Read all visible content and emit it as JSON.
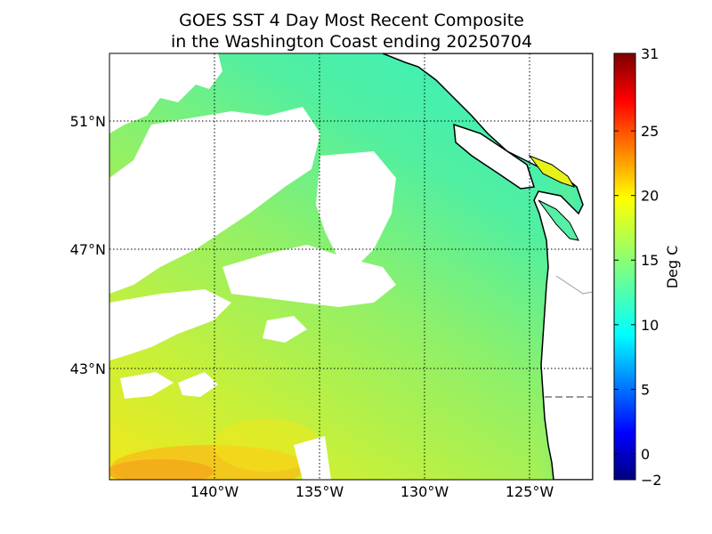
{
  "title": {
    "line1": "GOES SST 4 Day Most Recent Composite",
    "line2": "in the Washington Coast ending 20250704"
  },
  "map": {
    "lon_range": [
      -145.5,
      -122.8
    ],
    "lat_range": [
      40.0,
      53.2
    ],
    "lat_ticks": [
      {
        "value": 51,
        "label": "51°N"
      },
      {
        "value": 47,
        "label": "47°N"
      },
      {
        "value": 43,
        "label": "43°N"
      }
    ],
    "lon_ticks": [
      {
        "value": -140,
        "label": "140°W"
      },
      {
        "value": -135,
        "label": "135°W"
      },
      {
        "value": -130,
        "label": "130°W"
      },
      {
        "value": -125,
        "label": "125°W"
      }
    ],
    "grid": "dotted",
    "land_color": "#ffffff",
    "coast_color": "#000000"
  },
  "colorbar": {
    "label": "Deg C",
    "range": [
      -2,
      31
    ],
    "ticks": [
      {
        "value": 31,
        "label": "31"
      },
      {
        "value": 25,
        "label": "25"
      },
      {
        "value": 20,
        "label": "20"
      },
      {
        "value": 15,
        "label": "15"
      },
      {
        "value": 10,
        "label": "10"
      },
      {
        "value": 5,
        "label": "5"
      },
      {
        "value": 0,
        "label": "0"
      },
      {
        "value": -2,
        "label": "−2"
      }
    ],
    "colormap": "jet",
    "colors": [
      "#00007f",
      "#0000ff",
      "#007fff",
      "#00ffff",
      "#7fff7f",
      "#ffff00",
      "#ff7f00",
      "#ff0000",
      "#7f0000"
    ]
  }
}
